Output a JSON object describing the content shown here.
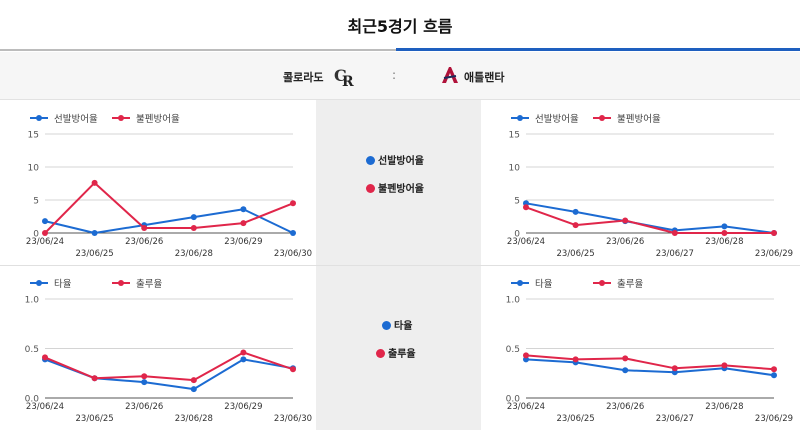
{
  "header": {
    "title": "최근5경기 흐름"
  },
  "matchup": {
    "home": "콜로라도",
    "separator": ":",
    "away": "애틀랜타"
  },
  "colors": {
    "series_a": "#1c6bd2",
    "series_b": "#e0264a",
    "active_tab": "#1e5fbf"
  },
  "icons": {
    "home_logo": "colorado-rockies-logo",
    "away_logo": "atlanta-braves-logo"
  },
  "center_legends": {
    "top": [
      {
        "label": "선발방어율"
      },
      {
        "label": "불펜방어율"
      }
    ],
    "bottom": [
      {
        "label": "타율"
      },
      {
        "label": "출루율"
      }
    ]
  },
  "chart_data": [
    {
      "type": "line",
      "team": "콜로라도",
      "ylim": [
        0,
        15
      ],
      "yticks": [
        "0",
        "5",
        "10",
        "15"
      ],
      "categories": [
        "23/06/24",
        "23/06/25",
        "23/06/26",
        "23/06/28",
        "23/06/29",
        "23/06/30"
      ],
      "series": [
        {
          "name": "선발방어율",
          "values": [
            1.8,
            0.0,
            1.2,
            2.4,
            3.6,
            0.0
          ]
        },
        {
          "name": "불펜방어율",
          "values": [
            0.0,
            7.6,
            0.75,
            0.75,
            1.5,
            4.5
          ]
        }
      ],
      "legend": "top-left"
    },
    {
      "type": "line",
      "team": "애틀랜타",
      "ylim": [
        0,
        15
      ],
      "yticks": [
        "0",
        "5",
        "10",
        "15"
      ],
      "categories": [
        "23/06/24",
        "23/06/25",
        "23/06/26",
        "23/06/27",
        "23/06/28",
        "23/06/29"
      ],
      "series": [
        {
          "name": "선발방어율",
          "values": [
            4.5,
            3.2,
            1.8,
            0.4,
            1.0,
            0.0
          ]
        },
        {
          "name": "불펜방어율",
          "values": [
            3.9,
            1.2,
            1.9,
            0.0,
            0.0,
            0.0
          ]
        }
      ],
      "legend": "top-left"
    },
    {
      "type": "line",
      "team": "콜로라도",
      "ylim": [
        0,
        1
      ],
      "yticks": [
        "0.0",
        "0.5",
        "1.0"
      ],
      "categories": [
        "23/06/24",
        "23/06/25",
        "23/06/26",
        "23/06/28",
        "23/06/29",
        "23/06/30"
      ],
      "series": [
        {
          "name": "타율",
          "values": [
            0.39,
            0.2,
            0.16,
            0.09,
            0.39,
            0.3
          ]
        },
        {
          "name": "출루율",
          "values": [
            0.41,
            0.2,
            0.22,
            0.18,
            0.46,
            0.29
          ]
        }
      ],
      "legend": "top-left"
    },
    {
      "type": "line",
      "team": "애틀랜타",
      "ylim": [
        0,
        1
      ],
      "yticks": [
        "0.0",
        "0.5",
        "1.0"
      ],
      "categories": [
        "23/06/24",
        "23/06/25",
        "23/06/26",
        "23/06/27",
        "23/06/28",
        "23/06/29"
      ],
      "series": [
        {
          "name": "타율",
          "values": [
            0.39,
            0.36,
            0.28,
            0.26,
            0.3,
            0.23
          ]
        },
        {
          "name": "출루율",
          "values": [
            0.43,
            0.39,
            0.4,
            0.3,
            0.33,
            0.29
          ]
        }
      ],
      "legend": "top-left"
    }
  ]
}
